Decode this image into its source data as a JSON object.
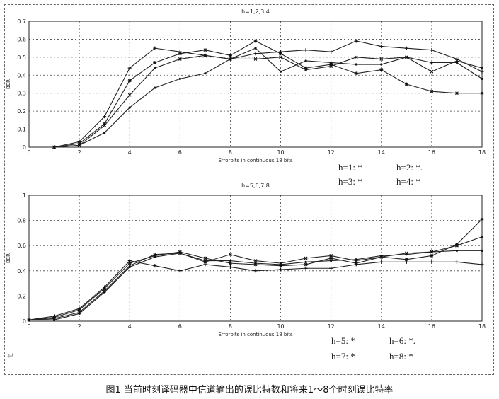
{
  "caption": "图1  当前时刻译码器中信道输出的误比特数和将来1～8个时刻误比特率",
  "return_mark": "↵",
  "chart_data": [
    {
      "type": "line",
      "title": "h=1,2,3,4",
      "xlabel": "Errorbits in continuous 18 bits",
      "ylabel": "BER",
      "xlim": [
        0,
        18
      ],
      "ylim": [
        0,
        0.7
      ],
      "xticks": [
        "0",
        "2",
        "4",
        "6",
        "8",
        "10",
        "12",
        "14",
        "16",
        "18"
      ],
      "yticks": [
        "0",
        "0.1",
        "0.2",
        "0.3",
        "0.4",
        "0.5",
        "0.6",
        "0.7"
      ],
      "grid": true,
      "legend_lines": [
        "h=1: *",
        "h=2: *.",
        "h=3: *",
        "h=4: *"
      ],
      "x": [
        1,
        2,
        3,
        4,
        5,
        6,
        7,
        8,
        9,
        10,
        11,
        12,
        13,
        14,
        15,
        16,
        17,
        18
      ],
      "series": [
        {
          "values": [
            0,
            0.03,
            0.17,
            0.44,
            0.55,
            0.53,
            0.51,
            0.49,
            0.52,
            0.53,
            0.54,
            0.53,
            0.59,
            0.56,
            0.55,
            0.54,
            0.49,
            0.42
          ]
        },
        {
          "values": [
            0,
            0.02,
            0.13,
            0.37,
            0.47,
            0.52,
            0.54,
            0.51,
            0.59,
            0.52,
            0.44,
            0.46,
            0.41,
            0.43,
            0.35,
            0.31,
            0.3,
            0.3
          ]
        },
        {
          "values": [
            0,
            0.01,
            0.12,
            0.29,
            0.44,
            0.49,
            0.51,
            0.49,
            0.49,
            0.5,
            0.43,
            0.45,
            0.5,
            0.49,
            0.5,
            0.42,
            0.48,
            0.44
          ]
        },
        {
          "values": [
            0,
            0.01,
            0.08,
            0.22,
            0.33,
            0.38,
            0.41,
            0.49,
            0.55,
            0.42,
            0.48,
            0.47,
            0.46,
            0.46,
            0.5,
            0.47,
            0.47,
            0.38
          ]
        }
      ]
    },
    {
      "type": "line",
      "title": "h=5,6,7,8",
      "xlabel": "Errorbits in continuous 18 bits",
      "ylabel": "BER",
      "xlim": [
        0,
        18
      ],
      "ylim": [
        0,
        1
      ],
      "xticks": [
        "0",
        "2",
        "4",
        "6",
        "8",
        "10",
        "12",
        "14",
        "16",
        "18"
      ],
      "yticks": [
        "0",
        "0.2",
        "0.4",
        "0.6",
        "0.8",
        "1"
      ],
      "grid": true,
      "legend_lines": [
        "h=5: *",
        "h=6: *.",
        "h=7: *",
        "h=8: *"
      ],
      "x": [
        0,
        1,
        2,
        3,
        4,
        5,
        6,
        7,
        8,
        9,
        10,
        11,
        12,
        13,
        14,
        15,
        16,
        17,
        18
      ],
      "series": [
        {
          "values": [
            0.01,
            0.04,
            0.1,
            0.27,
            0.48,
            0.44,
            0.4,
            0.45,
            0.43,
            0.4,
            0.41,
            0.42,
            0.42,
            0.45,
            0.47,
            0.47,
            0.47,
            0.47,
            0.45
          ]
        },
        {
          "values": [
            0.01,
            0.03,
            0.09,
            0.26,
            0.46,
            0.52,
            0.55,
            0.5,
            0.46,
            0.45,
            0.44,
            0.45,
            0.5,
            0.46,
            0.51,
            0.49,
            0.52,
            0.61,
            0.81
          ]
        },
        {
          "values": [
            0.01,
            0.02,
            0.07,
            0.24,
            0.44,
            0.53,
            0.54,
            0.47,
            0.53,
            0.48,
            0.46,
            0.5,
            0.52,
            0.48,
            0.51,
            0.54,
            0.55,
            0.6,
            0.67
          ]
        },
        {
          "values": [
            0.01,
            0.01,
            0.06,
            0.23,
            0.43,
            0.51,
            0.54,
            0.48,
            0.48,
            0.46,
            0.45,
            0.47,
            0.48,
            0.49,
            0.52,
            0.53,
            0.55,
            0.56,
            0.56
          ]
        }
      ]
    }
  ]
}
